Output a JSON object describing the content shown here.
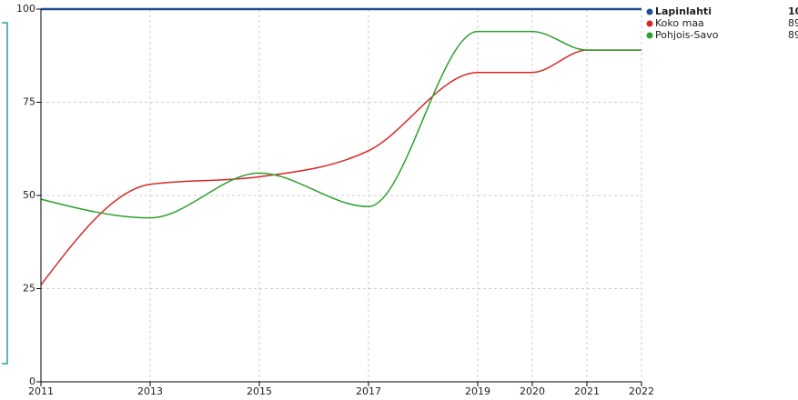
{
  "chart_data": {
    "type": "line",
    "x": [
      2011,
      2013,
      2015,
      2017,
      2019,
      2020,
      2021,
      2022
    ],
    "xlim": [
      2011,
      2022
    ],
    "xticks": [
      2011,
      2013,
      2015,
      2017,
      2019,
      2020,
      2021,
      2022
    ],
    "ylim": [
      0,
      100
    ],
    "yticks": [
      0,
      25,
      50,
      75,
      100
    ],
    "grid": true,
    "legend": "right",
    "series": [
      {
        "name": "Lapinlahti",
        "color": "#1f4e8c",
        "values": [
          100,
          100,
          100,
          100,
          100,
          100,
          100,
          100
        ]
      },
      {
        "name": "Koko maa",
        "color": "#d62728",
        "values": [
          26,
          53,
          55,
          62,
          83,
          83,
          89,
          89
        ]
      },
      {
        "name": "Pohjois-Savo",
        "color": "#2ca02c",
        "values": [
          49,
          44,
          56,
          47,
          94,
          94,
          89,
          89
        ]
      }
    ]
  }
}
